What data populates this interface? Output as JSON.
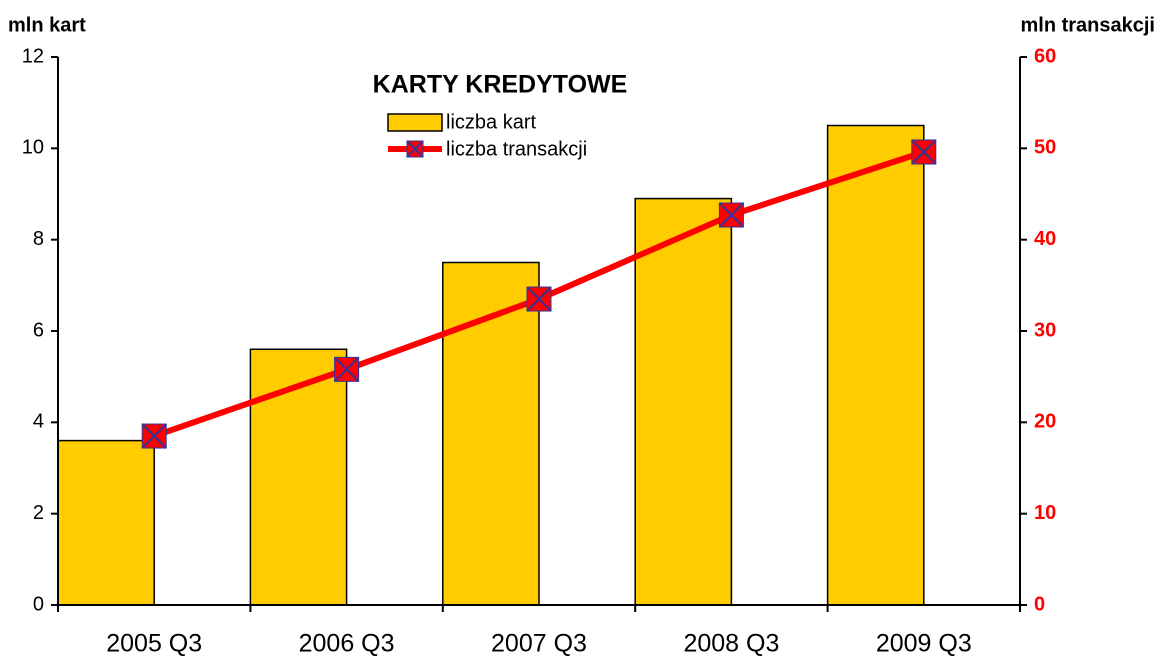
{
  "chart_data": {
    "type": "bar_line",
    "title": "KARTY KREDYTOWE",
    "y_label": "mln kart",
    "y2_label": "mln transakcji",
    "categories": [
      "2005 Q3",
      "2006 Q3",
      "2007 Q3",
      "2008 Q3",
      "2009 Q3"
    ],
    "series": [
      {
        "name": "liczba kart",
        "type": "bar",
        "color": "#ffcc00",
        "values": [
          3.6,
          5.6,
          7.5,
          8.9,
          10.5
        ]
      },
      {
        "name": "liczba transakcji",
        "type": "line",
        "axis": "y2",
        "color": "#ff0000",
        "marker_color": "#333399",
        "values": [
          18.5,
          25.8,
          33.5,
          42.7,
          49.6
        ]
      }
    ],
    "ylim": [
      0,
      12
    ],
    "yticks": [
      0,
      2,
      4,
      6,
      8,
      10,
      12
    ],
    "y2lim": [
      0,
      60
    ],
    "y2ticks": [
      0,
      10,
      20,
      30,
      40,
      50,
      60
    ],
    "y2_color": "#ff0000"
  }
}
